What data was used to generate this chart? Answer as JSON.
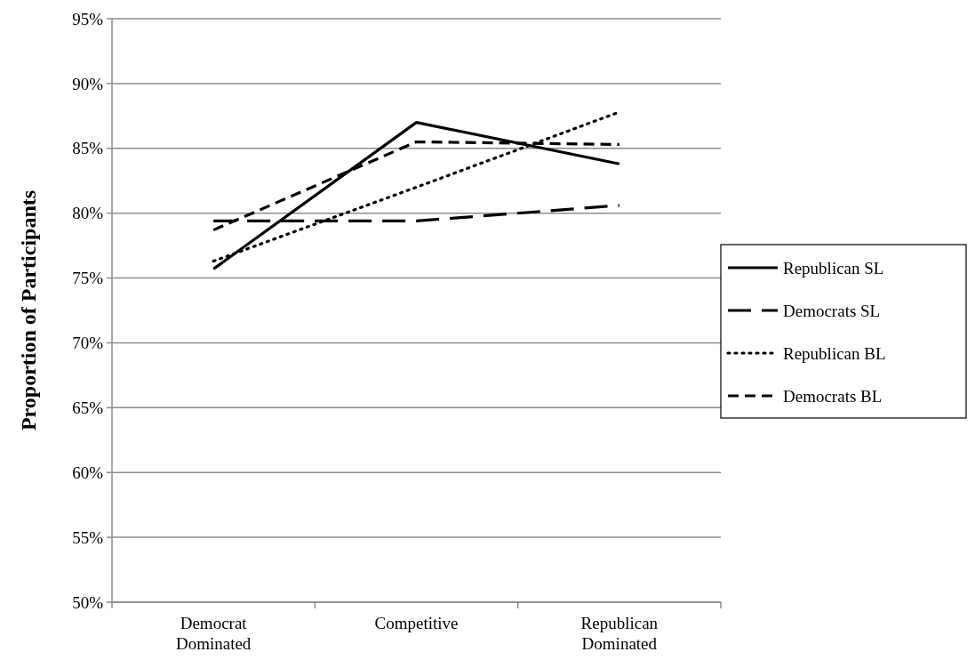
{
  "chart_data": {
    "type": "line",
    "ylabel": "Proportion of Participants",
    "categories": [
      "Democrat\nDominated",
      "Competitive",
      "Republican\nDominated"
    ],
    "series": [
      {
        "name": "Republican SL",
        "color": "#000000",
        "line_style": "solid",
        "values": [
          75.7,
          87.0,
          83.8
        ]
      },
      {
        "name": "Democrats SL",
        "color": "#000000",
        "line_style": "dashed",
        "values": [
          79.4,
          79.4,
          80.6
        ]
      },
      {
        "name": "Republican BL",
        "color": "#000000",
        "line_style": "dotted",
        "values": [
          76.3,
          82.0,
          87.8
        ]
      },
      {
        "name": "Democrats BL",
        "color": "#000000",
        "line_style": "dashed",
        "values": [
          78.7,
          85.5,
          85.3
        ]
      }
    ],
    "ylim": [
      50,
      95
    ],
    "yticks": [
      {
        "value": 50,
        "label": "50%"
      },
      {
        "value": 55,
        "label": "55%"
      },
      {
        "value": 60,
        "label": "60%"
      },
      {
        "value": 65,
        "label": "65%"
      },
      {
        "value": 70,
        "label": "70%"
      },
      {
        "value": 75,
        "label": "75%"
      },
      {
        "value": 80,
        "label": "80%"
      },
      {
        "value": 85,
        "label": "85%"
      },
      {
        "value": 90,
        "label": "90%"
      },
      {
        "value": 95,
        "label": "95%"
      }
    ],
    "grid": "y",
    "legend": "right"
  }
}
